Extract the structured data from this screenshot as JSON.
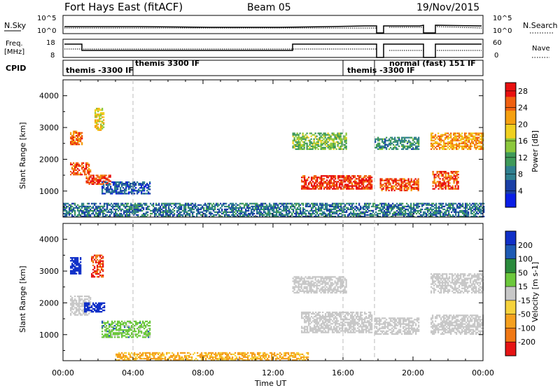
{
  "header": {
    "station": "Fort Hays East (fitACF)",
    "beam": "Beam 05",
    "date": "19/Nov/2015"
  },
  "noise_panel": {
    "left_label": "N.Sky",
    "right_label": "N.Search",
    "left_ticks": [
      "10^5",
      "10^0"
    ],
    "right_ticks": [
      "10^5",
      "10^0"
    ]
  },
  "freq_panel": {
    "left_label_line1": "Freq.",
    "left_label_line2": "[MHz]",
    "right_label": "Nave",
    "left_ticks": [
      "18",
      "8"
    ],
    "right_ticks": [
      "60",
      "0"
    ]
  },
  "cpid_panel": {
    "label": "CPID",
    "segments": [
      {
        "label": "themis -3300 IF",
        "start_h": 0,
        "end_h": 3.9
      },
      {
        "label": "themis 3300 IF",
        "start_h": 3.9,
        "end_h": 16.0
      },
      {
        "label": "themis -3300 IF",
        "start_h": 16.0,
        "end_h": 17.8
      },
      {
        "label": "normal (fast) 151 IF",
        "start_h": 17.8,
        "end_h": 24
      }
    ]
  },
  "colors": {
    "power_scale": [
      "#0a1ee6",
      "#1a3fa6",
      "#2f7f8f",
      "#3f9a5a",
      "#8cc83c",
      "#f0d020",
      "#f5a010",
      "#f06010",
      "#e81010"
    ],
    "velocity_scale": [
      "#1030c8",
      "#1e5ab4",
      "#2a8a3c",
      "#6cc83c",
      "#c8c8c8",
      "#f5d23c",
      "#f5a01e",
      "#f07814",
      "#e61414"
    ]
  },
  "chart_data": [
    {
      "type": "heatmap",
      "name_in_figure": "power panel",
      "xlabel": "Time UT",
      "ylabel": "Slant Range [km]",
      "x_ticks": [
        "00:00",
        "04:00",
        "08:00",
        "12:00",
        "16:00",
        "20:00",
        "00:00"
      ],
      "y_ticks": [
        1000,
        2000,
        3000,
        4000
      ],
      "xlim_hours": [
        0,
        24
      ],
      "ylim_km": [
        180,
        4500
      ],
      "colorbar_label": "Power [dB]",
      "colorbar_ticks": [
        4,
        8,
        12,
        16,
        20,
        24,
        28
      ],
      "colorbar_range": [
        0,
        30
      ],
      "echo_regions": [
        {
          "t0": 0.4,
          "t1": 1.1,
          "r0": 2450,
          "r1": 2900,
          "value": 24
        },
        {
          "t0": 0.4,
          "t1": 1.6,
          "r0": 1500,
          "r1": 1900,
          "value": 25
        },
        {
          "t0": 1.3,
          "t1": 2.7,
          "r0": 1200,
          "r1": 1500,
          "value": 27
        },
        {
          "t0": 1.8,
          "t1": 2.3,
          "r0": 2900,
          "r1": 3600,
          "value": 18
        },
        {
          "t0": 2.2,
          "t1": 5.0,
          "r0": 900,
          "r1": 1300,
          "value": 6
        },
        {
          "t0": 13.1,
          "t1": 16.2,
          "r0": 2300,
          "r1": 2800,
          "value": 14
        },
        {
          "t0": 13.6,
          "t1": 17.6,
          "r0": 1050,
          "r1": 1500,
          "value": 27
        },
        {
          "t0": 17.8,
          "t1": 20.3,
          "r0": 2300,
          "r1": 2700,
          "value": 10
        },
        {
          "t0": 18.1,
          "t1": 20.3,
          "r0": 1000,
          "r1": 1400,
          "value": 26
        },
        {
          "t0": 21.1,
          "t1": 22.6,
          "r0": 1050,
          "r1": 1600,
          "value": 26
        },
        {
          "t0": 21.0,
          "t1": 24.0,
          "r0": 2300,
          "r1": 2800,
          "value": 22
        },
        {
          "t0": 0.0,
          "t1": 24.0,
          "r0": 180,
          "r1": 600,
          "value": 8
        }
      ]
    },
    {
      "type": "heatmap",
      "name_in_figure": "velocity panel",
      "xlabel": "Time UT",
      "ylabel": "Slant Range [km]",
      "x_ticks": [
        "00:00",
        "04:00",
        "08:00",
        "12:00",
        "16:00",
        "20:00",
        "00:00"
      ],
      "y_ticks": [
        1000,
        2000,
        3000,
        4000
      ],
      "xlim_hours": [
        0,
        24
      ],
      "ylim_km": [
        180,
        4500
      ],
      "colorbar_label": "Velocity [m s-1]",
      "colorbar_ticks": [
        200,
        100,
        50,
        15,
        -15,
        -50,
        -100,
        -200
      ],
      "echo_regions": [
        {
          "t0": 0.4,
          "t1": 1.6,
          "r0": 1600,
          "r1": 2200,
          "value": 0
        },
        {
          "t0": 1.2,
          "t1": 2.4,
          "r0": 1700,
          "r1": 2000,
          "value": 200
        },
        {
          "t0": 0.4,
          "t1": 1.0,
          "r0": 2900,
          "r1": 3400,
          "value": 200
        },
        {
          "t0": 1.6,
          "t1": 2.3,
          "r0": 2800,
          "r1": 3500,
          "value": -200
        },
        {
          "t0": 2.2,
          "t1": 5.0,
          "r0": 900,
          "r1": 1400,
          "value": 50
        },
        {
          "t0": 13.1,
          "t1": 16.2,
          "r0": 2300,
          "r1": 2800,
          "value": 0
        },
        {
          "t0": 13.6,
          "t1": 17.6,
          "r0": 1050,
          "r1": 1700,
          "value": 0
        },
        {
          "t0": 17.8,
          "t1": 20.3,
          "r0": 1000,
          "r1": 1500,
          "value": 0
        },
        {
          "t0": 21.0,
          "t1": 24.0,
          "r0": 1000,
          "r1": 1600,
          "value": 0
        },
        {
          "t0": 21.0,
          "t1": 24.0,
          "r0": 2300,
          "r1": 2900,
          "value": 0
        },
        {
          "t0": 3.0,
          "t1": 14.0,
          "r0": 180,
          "r1": 450,
          "value": -60
        }
      ]
    }
  ]
}
